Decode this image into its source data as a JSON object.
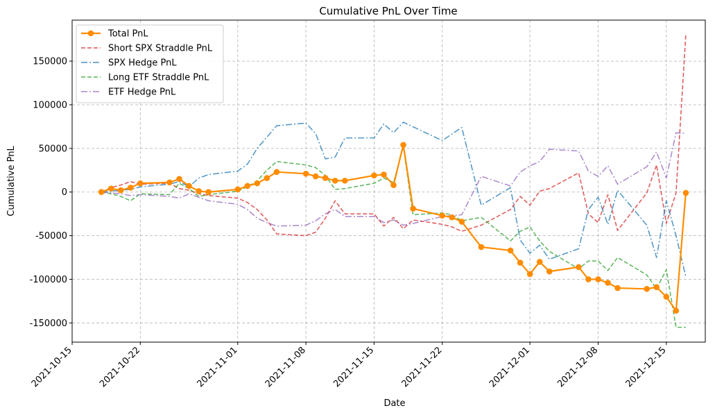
{
  "chart_data": {
    "type": "line",
    "title": "Cumulative PnL Over Time",
    "xlabel": "Date",
    "ylabel": "Cumulative PnL",
    "xlim": [
      "2021-10-15",
      "2021-12-19"
    ],
    "ylim": [
      -172000,
      197000
    ],
    "x_ticks": [
      "2021-10-15",
      "2021-10-22",
      "2021-11-01",
      "2021-11-08",
      "2021-11-15",
      "2021-11-22",
      "2021-12-01",
      "2021-12-08",
      "2021-12-15"
    ],
    "y_ticks": [
      -150000,
      -100000,
      -50000,
      0,
      50000,
      100000,
      150000
    ],
    "grid": true,
    "legend_position": "upper-left",
    "series": [
      {
        "name": "Total PnL",
        "color": "#ff8c00",
        "style": "solid-markers",
        "points": [
          [
            "2021-10-18",
            0
          ],
          [
            "2021-10-19",
            4000
          ],
          [
            "2021-10-20",
            2000
          ],
          [
            "2021-10-21",
            5000
          ],
          [
            "2021-10-22",
            10000
          ],
          [
            "2021-10-25",
            11000
          ],
          [
            "2021-10-26",
            15000
          ],
          [
            "2021-10-27",
            7000
          ],
          [
            "2021-10-28",
            1000
          ],
          [
            "2021-10-29",
            0
          ],
          [
            "2021-11-01",
            3000
          ],
          [
            "2021-11-02",
            7000
          ],
          [
            "2021-11-03",
            10000
          ],
          [
            "2021-11-04",
            16000
          ],
          [
            "2021-11-05",
            23000
          ],
          [
            "2021-11-08",
            21000
          ],
          [
            "2021-11-09",
            18000
          ],
          [
            "2021-11-10",
            16000
          ],
          [
            "2021-11-11",
            13000
          ],
          [
            "2021-11-12",
            13000
          ],
          [
            "2021-11-15",
            19000
          ],
          [
            "2021-11-16",
            20000
          ],
          [
            "2021-11-17",
            8000
          ],
          [
            "2021-11-18",
            54000
          ],
          [
            "2021-11-19",
            -19000
          ],
          [
            "2021-11-22",
            -27000
          ],
          [
            "2021-11-23",
            -29000
          ],
          [
            "2021-11-24",
            -34000
          ],
          [
            "2021-11-26",
            -63000
          ],
          [
            "2021-11-29",
            -67000
          ],
          [
            "2021-11-30",
            -81000
          ],
          [
            "2021-12-01",
            -94000
          ],
          [
            "2021-12-02",
            -80000
          ],
          [
            "2021-12-03",
            -91000
          ],
          [
            "2021-12-06",
            -86000
          ],
          [
            "2021-12-07",
            -100000
          ],
          [
            "2021-12-08",
            -100000
          ],
          [
            "2021-12-09",
            -104000
          ],
          [
            "2021-12-10",
            -110000
          ],
          [
            "2021-12-13",
            -111000
          ],
          [
            "2021-12-14",
            -109000
          ],
          [
            "2021-12-15",
            -120000
          ],
          [
            "2021-12-16",
            -136000
          ],
          [
            "2021-12-17",
            -1000
          ]
        ]
      },
      {
        "name": "Short SPX Straddle PnL",
        "color": "#d62728",
        "style": "dashed",
        "points": [
          [
            "2021-10-18",
            0
          ],
          [
            "2021-10-19",
            5000
          ],
          [
            "2021-10-20",
            8000
          ],
          [
            "2021-10-21",
            12000
          ],
          [
            "2021-10-22",
            9000
          ],
          [
            "2021-10-25",
            10000
          ],
          [
            "2021-10-26",
            4000
          ],
          [
            "2021-10-27",
            2000
          ],
          [
            "2021-10-28",
            -2000
          ],
          [
            "2021-10-29",
            -4000
          ],
          [
            "2021-11-01",
            -7000
          ],
          [
            "2021-11-02",
            -12000
          ],
          [
            "2021-11-03",
            -20000
          ],
          [
            "2021-11-04",
            -32000
          ],
          [
            "2021-11-05",
            -48000
          ],
          [
            "2021-11-08",
            -50000
          ],
          [
            "2021-11-09",
            -46000
          ],
          [
            "2021-11-10",
            -30000
          ],
          [
            "2021-11-11",
            -10000
          ],
          [
            "2021-11-12",
            -25000
          ],
          [
            "2021-11-15",
            -25000
          ],
          [
            "2021-11-16",
            -39000
          ],
          [
            "2021-11-17",
            -29000
          ],
          [
            "2021-11-18",
            -42000
          ],
          [
            "2021-11-19",
            -32000
          ],
          [
            "2021-11-22",
            -37000
          ],
          [
            "2021-11-23",
            -40000
          ],
          [
            "2021-11-24",
            -45000
          ],
          [
            "2021-11-26",
            -38000
          ],
          [
            "2021-11-29",
            -20000
          ],
          [
            "2021-11-30",
            -5000
          ],
          [
            "2021-12-01",
            -15000
          ],
          [
            "2021-12-02",
            1000
          ],
          [
            "2021-12-03",
            4000
          ],
          [
            "2021-12-06",
            22000
          ],
          [
            "2021-12-07",
            -25000
          ],
          [
            "2021-12-08",
            -35000
          ],
          [
            "2021-12-09",
            -3000
          ],
          [
            "2021-12-10",
            -44000
          ],
          [
            "2021-12-13",
            -1000
          ],
          [
            "2021-12-14",
            31000
          ],
          [
            "2021-12-15",
            -36000
          ],
          [
            "2021-12-16",
            -1000
          ],
          [
            "2021-12-17",
            180000
          ]
        ]
      },
      {
        "name": "SPX Hedge PnL",
        "color": "#1f77b4",
        "style": "dashdot",
        "points": [
          [
            "2021-10-18",
            0
          ],
          [
            "2021-10-19",
            1000
          ],
          [
            "2021-10-20",
            2000
          ],
          [
            "2021-10-21",
            3000
          ],
          [
            "2021-10-22",
            6000
          ],
          [
            "2021-10-25",
            9000
          ],
          [
            "2021-10-26",
            12000
          ],
          [
            "2021-10-27",
            6000
          ],
          [
            "2021-10-28",
            16000
          ],
          [
            "2021-10-29",
            20000
          ],
          [
            "2021-11-01",
            24000
          ],
          [
            "2021-11-02",
            32000
          ],
          [
            "2021-11-03",
            50000
          ],
          [
            "2021-11-04",
            63000
          ],
          [
            "2021-11-05",
            76000
          ],
          [
            "2021-11-08",
            79000
          ],
          [
            "2021-11-09",
            67000
          ],
          [
            "2021-11-10",
            38000
          ],
          [
            "2021-11-11",
            40000
          ],
          [
            "2021-11-12",
            62000
          ],
          [
            "2021-11-15",
            62000
          ],
          [
            "2021-11-16",
            78000
          ],
          [
            "2021-11-17",
            68000
          ],
          [
            "2021-11-18",
            80000
          ],
          [
            "2021-11-22",
            59000
          ],
          [
            "2021-11-24",
            74000
          ],
          [
            "2021-11-26",
            -15000
          ],
          [
            "2021-11-29",
            5000
          ],
          [
            "2021-11-30",
            -55000
          ],
          [
            "2021-12-01",
            -70000
          ],
          [
            "2021-12-02",
            -61000
          ],
          [
            "2021-12-03",
            -77000
          ],
          [
            "2021-12-06",
            -65000
          ],
          [
            "2021-12-07",
            -20000
          ],
          [
            "2021-12-08",
            -6000
          ],
          [
            "2021-12-09",
            -37000
          ],
          [
            "2021-12-10",
            2000
          ],
          [
            "2021-12-13",
            -38000
          ],
          [
            "2021-12-14",
            -75000
          ],
          [
            "2021-12-15",
            -10000
          ],
          [
            "2021-12-16",
            -50000
          ],
          [
            "2021-12-17",
            -97000
          ]
        ]
      },
      {
        "name": "Long ETF Straddle PnL",
        "color": "#2ca02c",
        "style": "dashed",
        "points": [
          [
            "2021-10-18",
            0
          ],
          [
            "2021-10-19",
            -2000
          ],
          [
            "2021-10-20",
            -5000
          ],
          [
            "2021-10-21",
            -10000
          ],
          [
            "2021-10-22",
            -2000
          ],
          [
            "2021-10-25",
            -3000
          ],
          [
            "2021-10-26",
            10000
          ],
          [
            "2021-10-27",
            4000
          ],
          [
            "2021-10-28",
            -5000
          ],
          [
            "2021-10-29",
            -3000
          ],
          [
            "2021-11-01",
            1000
          ],
          [
            "2021-11-02",
            6000
          ],
          [
            "2021-11-03",
            13000
          ],
          [
            "2021-11-04",
            25000
          ],
          [
            "2021-11-05",
            35000
          ],
          [
            "2021-11-08",
            31000
          ],
          [
            "2021-11-09",
            28000
          ],
          [
            "2021-11-10",
            19000
          ],
          [
            "2021-11-11",
            3000
          ],
          [
            "2021-11-12",
            4000
          ],
          [
            "2021-11-15",
            10000
          ],
          [
            "2021-11-16",
            16000
          ],
          [
            "2021-11-17",
            11000
          ],
          [
            "2021-11-18",
            52000
          ],
          [
            "2021-11-19",
            -26000
          ],
          [
            "2021-11-22",
            -24000
          ],
          [
            "2021-11-23",
            -26000
          ],
          [
            "2021-11-24",
            -33000
          ],
          [
            "2021-11-26",
            -29000
          ],
          [
            "2021-11-29",
            -56000
          ],
          [
            "2021-11-30",
            -45000
          ],
          [
            "2021-12-01",
            -40000
          ],
          [
            "2021-12-02",
            -56000
          ],
          [
            "2021-12-03",
            -68000
          ],
          [
            "2021-12-06",
            -88000
          ],
          [
            "2021-12-07",
            -79000
          ],
          [
            "2021-12-08",
            -79000
          ],
          [
            "2021-12-09",
            -90000
          ],
          [
            "2021-12-10",
            -75000
          ],
          [
            "2021-12-13",
            -95000
          ],
          [
            "2021-12-14",
            -111000
          ],
          [
            "2021-12-15",
            -89000
          ],
          [
            "2021-12-16",
            -155000
          ],
          [
            "2021-12-17",
            -155000
          ]
        ]
      },
      {
        "name": "ETF Hedge PnL",
        "color": "#9467bd",
        "style": "dashdot",
        "points": [
          [
            "2021-10-18",
            0
          ],
          [
            "2021-10-19",
            -1000
          ],
          [
            "2021-10-20",
            -2000
          ],
          [
            "2021-10-21",
            -4000
          ],
          [
            "2021-10-22",
            -3000
          ],
          [
            "2021-10-25",
            -5000
          ],
          [
            "2021-10-26",
            -7000
          ],
          [
            "2021-10-27",
            -2000
          ],
          [
            "2021-10-28",
            -6000
          ],
          [
            "2021-10-29",
            -10000
          ],
          [
            "2021-11-01",
            -14000
          ],
          [
            "2021-11-02",
            -20000
          ],
          [
            "2021-11-03",
            -30000
          ],
          [
            "2021-11-04",
            -35000
          ],
          [
            "2021-11-05",
            -39000
          ],
          [
            "2021-11-08",
            -38000
          ],
          [
            "2021-11-09",
            -33000
          ],
          [
            "2021-11-10",
            -25000
          ],
          [
            "2021-11-11",
            -20000
          ],
          [
            "2021-11-12",
            -28000
          ],
          [
            "2021-11-15",
            -28000
          ],
          [
            "2021-11-16",
            -35000
          ],
          [
            "2021-11-17",
            -32000
          ],
          [
            "2021-11-18",
            -38000
          ],
          [
            "2021-11-19",
            -36000
          ],
          [
            "2021-11-22",
            -28000
          ],
          [
            "2021-11-24",
            -26000
          ],
          [
            "2021-11-26",
            18000
          ],
          [
            "2021-11-29",
            7000
          ],
          [
            "2021-11-30",
            23000
          ],
          [
            "2021-12-01",
            30000
          ],
          [
            "2021-12-02",
            35000
          ],
          [
            "2021-12-03",
            49000
          ],
          [
            "2021-12-06",
            47000
          ],
          [
            "2021-12-07",
            24000
          ],
          [
            "2021-12-08",
            18000
          ],
          [
            "2021-12-09",
            30000
          ],
          [
            "2021-12-10",
            9000
          ],
          [
            "2021-12-13",
            29000
          ],
          [
            "2021-12-14",
            46000
          ],
          [
            "2021-12-15",
            16000
          ],
          [
            "2021-12-16",
            68000
          ],
          [
            "2021-12-17",
            67000
          ]
        ]
      }
    ]
  }
}
